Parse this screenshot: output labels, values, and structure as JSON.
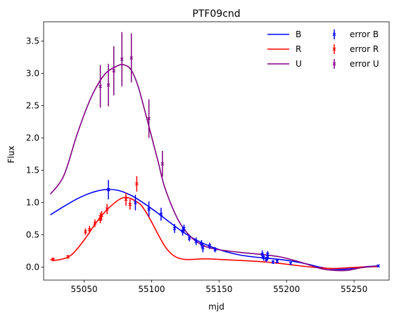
{
  "chart_data": {
    "type": "line",
    "title": "PTF09cnd",
    "xlabel": "mjd",
    "ylabel": "Flux",
    "xlim": [
      55020,
      55276
    ],
    "ylim": [
      -0.2,
      3.8
    ],
    "x_ticks": [
      55050,
      55100,
      55150,
      55200,
      55250
    ],
    "y_ticks": [
      0.0,
      0.5,
      1.0,
      1.5,
      2.0,
      2.5,
      3.0,
      3.5
    ],
    "x_tick_labels": [
      "55050",
      "55100",
      "55150",
      "55200",
      "55250"
    ],
    "y_tick_labels": [
      "0.0",
      "0.5",
      "1.0",
      "1.5",
      "2.0",
      "2.5",
      "3.0",
      "3.5"
    ],
    "grid": false,
    "legend_placement": "top-right",
    "series": [
      {
        "name": "B",
        "color": "#0000ff",
        "kind": "line",
        "x": [
          55025,
          55035,
          55045,
          55055,
          55065,
          55075,
          55085,
          55095,
          55105,
          55115,
          55125,
          55135,
          55145,
          55155,
          55165,
          55175,
          55185,
          55195,
          55205,
          55215,
          55225,
          55235,
          55245,
          55255,
          55268
        ],
        "y": [
          0.81,
          0.94,
          1.06,
          1.15,
          1.2,
          1.19,
          1.11,
          0.98,
          0.83,
          0.67,
          0.52,
          0.4,
          0.31,
          0.24,
          0.19,
          0.16,
          0.14,
          0.12,
          0.09,
          0.05,
          0.0,
          -0.03,
          -0.03,
          0.0,
          0.02
        ]
      },
      {
        "name": "R",
        "color": "#ff0000",
        "kind": "line",
        "x": [
          55025,
          55030,
          55040,
          55050,
          55060,
          55070,
          55080,
          55090,
          55095,
          55100,
          55105,
          55110,
          55115,
          55120,
          55125,
          55130,
          55140,
          55150,
          55170,
          55190,
          55210,
          55225,
          55235,
          55245,
          55255,
          55268
        ],
        "y": [
          0.12,
          0.11,
          0.18,
          0.42,
          0.72,
          0.95,
          1.08,
          1.0,
          0.88,
          0.7,
          0.5,
          0.32,
          0.2,
          0.14,
          0.12,
          0.12,
          0.13,
          0.12,
          0.1,
          0.07,
          0.02,
          -0.01,
          -0.02,
          -0.01,
          0.0,
          0.01
        ]
      },
      {
        "name": "U",
        "color": "#800080",
        "kind": "line",
        "x": [
          55025,
          55035,
          55045,
          55055,
          55065,
          55075,
          55080,
          55085,
          55090,
          55095,
          55100,
          55105,
          55110,
          55120,
          55130,
          55140,
          55150,
          55165,
          55180,
          55195,
          55210,
          55225,
          55235,
          55245,
          55255,
          55268
        ],
        "y": [
          1.13,
          1.42,
          2.07,
          2.62,
          2.98,
          3.12,
          3.13,
          3.05,
          2.8,
          2.42,
          2.02,
          1.62,
          1.22,
          0.72,
          0.45,
          0.32,
          0.27,
          0.23,
          0.2,
          0.16,
          0.08,
          -0.02,
          -0.05,
          -0.05,
          -0.01,
          0.02
        ]
      },
      {
        "name": "error B",
        "color": "#0000ff",
        "kind": "errorbar",
        "points": [
          [
            55068,
            1.2,
            0.15
          ],
          [
            55088,
            1.0,
            0.12
          ],
          [
            55098,
            0.9,
            0.12
          ],
          [
            55107,
            0.82,
            0.1
          ],
          [
            55117,
            0.6,
            0.07
          ],
          [
            55123,
            0.56,
            0.07
          ],
          [
            55124,
            0.6,
            0.06
          ],
          [
            55128,
            0.45,
            0.05
          ],
          [
            55133,
            0.4,
            0.06
          ],
          [
            55137,
            0.36,
            0.06
          ],
          [
            55138,
            0.3,
            0.07
          ],
          [
            55143,
            0.33,
            0.05
          ],
          [
            55147,
            0.27,
            0.04
          ],
          [
            55182,
            0.2,
            0.06
          ],
          [
            55183,
            0.15,
            0.05
          ],
          [
            55185,
            0.12,
            0.04
          ],
          [
            55186,
            0.16,
            0.05
          ],
          [
            55186,
            0.2,
            0.05
          ],
          [
            55190,
            0.08,
            0.03
          ],
          [
            55193,
            0.09,
            0.03
          ],
          [
            55203,
            0.06,
            0.02
          ],
          [
            55268,
            0.02,
            0.02
          ]
        ]
      },
      {
        "name": "error R",
        "color": "#ff0000",
        "kind": "errorbar",
        "points": [
          [
            55027,
            0.12,
            0.03
          ],
          [
            55038,
            0.16,
            0.03
          ],
          [
            55051,
            0.55,
            0.05
          ],
          [
            55054,
            0.58,
            0.06
          ],
          [
            55058,
            0.68,
            0.06
          ],
          [
            55062,
            0.74,
            0.06
          ],
          [
            55062,
            0.78,
            0.06
          ],
          [
            55063,
            0.8,
            0.07
          ],
          [
            55067,
            0.9,
            0.08
          ],
          [
            55081,
            1.05,
            0.1
          ],
          [
            55084,
            0.97,
            0.08
          ],
          [
            55089,
            1.29,
            0.12
          ]
        ]
      },
      {
        "name": "error U",
        "color": "#800080",
        "kind": "errorbar",
        "points": [
          [
            55062,
            2.8,
            0.33
          ],
          [
            55068,
            2.82,
            0.33
          ],
          [
            55072,
            3.04,
            0.38
          ],
          [
            55078,
            3.22,
            0.42
          ],
          [
            55085,
            3.24,
            0.38
          ],
          [
            55098,
            2.3,
            0.3
          ],
          [
            55108,
            1.6,
            0.2
          ]
        ]
      }
    ]
  }
}
